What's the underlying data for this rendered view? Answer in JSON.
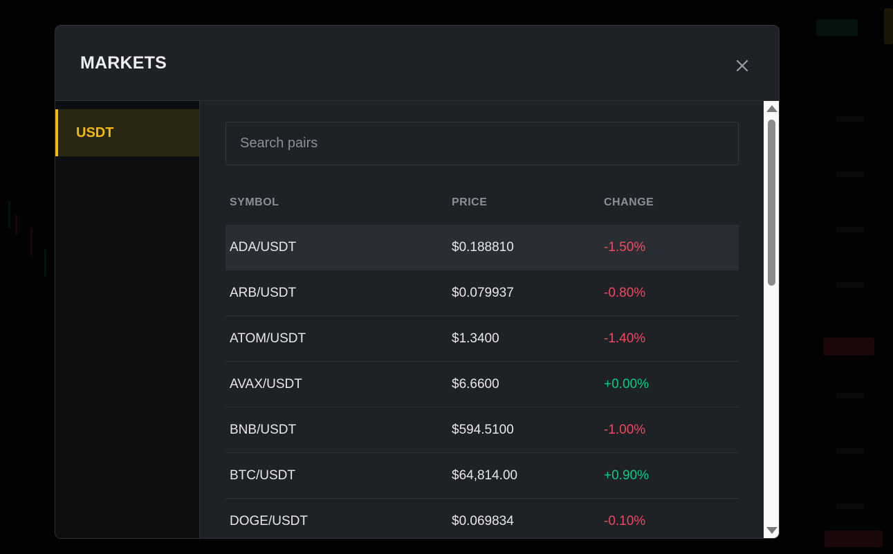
{
  "modal": {
    "title": "MARKETS",
    "close_icon": "close-icon"
  },
  "sidebar": {
    "items": [
      {
        "label": "USDT",
        "active": true
      }
    ]
  },
  "search": {
    "placeholder": "Search pairs",
    "value": ""
  },
  "table": {
    "headers": {
      "symbol": "SYMBOL",
      "price": "PRICE",
      "change": "CHANGE"
    },
    "rows": [
      {
        "symbol": "ADA/USDT",
        "price": "$0.188810",
        "change": "-1.50%",
        "direction": "down"
      },
      {
        "symbol": "ARB/USDT",
        "price": "$0.079937",
        "change": "-0.80%",
        "direction": "down"
      },
      {
        "symbol": "ATOM/USDT",
        "price": "$1.3400",
        "change": "-1.40%",
        "direction": "down"
      },
      {
        "symbol": "AVAX/USDT",
        "price": "$6.6600",
        "change": "+0.00%",
        "direction": "up"
      },
      {
        "symbol": "BNB/USDT",
        "price": "$594.5100",
        "change": "-1.00%",
        "direction": "down"
      },
      {
        "symbol": "BTC/USDT",
        "price": "$64,814.00",
        "change": "+0.90%",
        "direction": "up"
      },
      {
        "symbol": "DOGE/USDT",
        "price": "$0.069834",
        "change": "-0.10%",
        "direction": "down"
      }
    ]
  },
  "colors": {
    "accent": "#f0b90b",
    "negative": "#f6465d",
    "positive": "#0ecb81"
  }
}
